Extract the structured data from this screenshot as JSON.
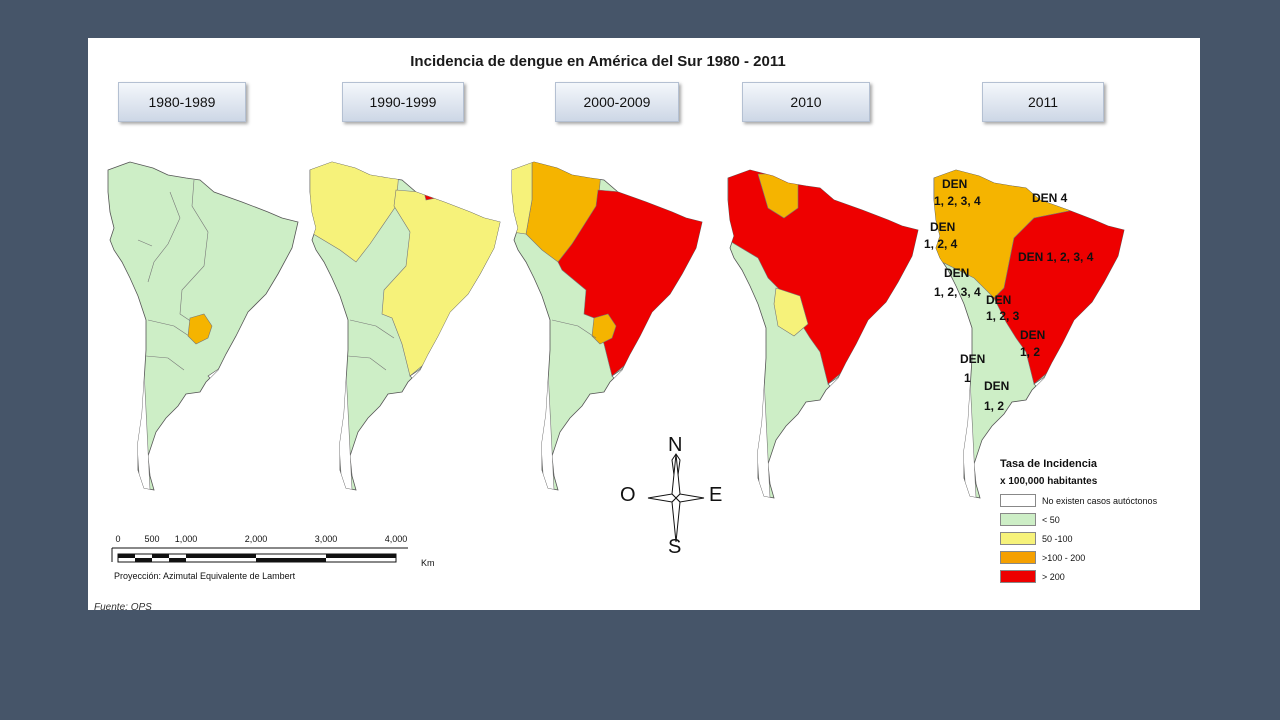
{
  "title": "Incidencia de dengue en América del Sur 1980 - 2011",
  "periods": [
    "1980-1989",
    "1990-1999",
    "2000-2009",
    "2010",
    "2011"
  ],
  "colors": {
    "no_cases": "#ffffff",
    "lt50": "#cdeec6",
    "50_100": "#f6f27a",
    "100_200": "#f5b400",
    "gt200": "#ee0000"
  },
  "legend": {
    "title": "Tasa de Incidencia",
    "subtitle": "x 100,000 habitantes",
    "items": [
      {
        "label": "No existen casos autóctonos",
        "color": "#ffffff"
      },
      {
        "label": "< 50",
        "color": "#cdeec6"
      },
      {
        "label": "50 -100",
        "color": "#f6f27a"
      },
      {
        "label": ">100 - 200",
        "color": "#f5a000"
      },
      {
        "label": "> 200",
        "color": "#ee0000"
      }
    ]
  },
  "serotypes": [
    {
      "line1": "DEN",
      "line2": "1, 2, 3, 4"
    },
    {
      "line1": "DEN 4",
      "line2": ""
    },
    {
      "line1": "DEN",
      "line2": "1, 2, 4"
    },
    {
      "line1": "DEN 1, 2, 3, 4",
      "line2": ""
    },
    {
      "line1": "DEN",
      "line2": "1, 2, 3, 4"
    },
    {
      "line1": "DEN",
      "line2": "1, 2, 3"
    },
    {
      "line1": "DEN",
      "line2": "1, 2"
    },
    {
      "line1": "DEN",
      "line2": "1"
    },
    {
      "line1": "DEN",
      "line2": "1, 2"
    }
  ],
  "compass": {
    "n": "N",
    "s": "S",
    "e": "E",
    "w": "O"
  },
  "scale": {
    "ticks": [
      "0",
      "500",
      "1,000",
      "2,000",
      "3,000",
      "4,000"
    ],
    "unit": "Km",
    "projection": "Proyección: Azimutal Equivalente de Lambert"
  },
  "source": "Fuente: OPS"
}
